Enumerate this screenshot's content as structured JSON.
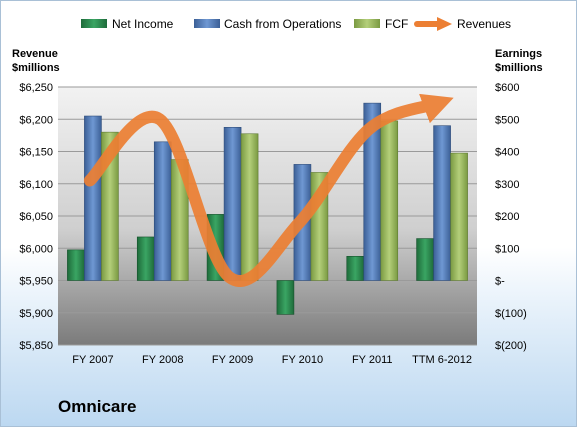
{
  "company": "Omnicare",
  "colors": {
    "net_income": "#2a8a4f",
    "cash_from_operations": "#4f79b8",
    "fcf": "#98b85a",
    "revenues": "#ec7f33"
  },
  "chart_data": {
    "type": "bar",
    "categories": [
      "FY 2007",
      "FY 2008",
      "FY 2009",
      "FY 2010",
      "FY 2011",
      "TTM 6-2012"
    ],
    "series": [
      {
        "name": "Net Income",
        "axis": "right",
        "type": "bar",
        "values": [
          95,
          135,
          205,
          -105,
          75,
          130
        ]
      },
      {
        "name": "Cash from Operations",
        "axis": "right",
        "type": "bar",
        "values": [
          510,
          430,
          475,
          360,
          550,
          480
        ]
      },
      {
        "name": "FCF",
        "axis": "right",
        "type": "bar",
        "values": [
          460,
          375,
          455,
          335,
          495,
          395
        ]
      },
      {
        "name": "Revenues",
        "axis": "left",
        "type": "line",
        "values": [
          6105,
          6200,
          5955,
          6040,
          6185,
          6225
        ]
      }
    ],
    "y_left": {
      "label_line1": "Revenue",
      "label_line2": "$millions",
      "min": 5850,
      "max": 6250,
      "step": 50,
      "tick_labels": [
        "$5,850",
        "$5,900",
        "$5,950",
        "$6,000",
        "$6,050",
        "$6,100",
        "$6,150",
        "$6,200",
        "$6,250"
      ]
    },
    "y_right": {
      "label_line1": "Earnings",
      "label_line2": "$millions",
      "min": -200,
      "max": 600,
      "step": 100,
      "tick_labels": [
        "$(200)",
        "$(100)",
        "$-",
        "$100",
        "$200",
        "$300",
        "$400",
        "$500",
        "$600"
      ]
    },
    "grid": true,
    "legend": {
      "position": "top",
      "entries": [
        "Net Income",
        "Cash from Operations",
        "FCF",
        "Revenues"
      ]
    }
  }
}
